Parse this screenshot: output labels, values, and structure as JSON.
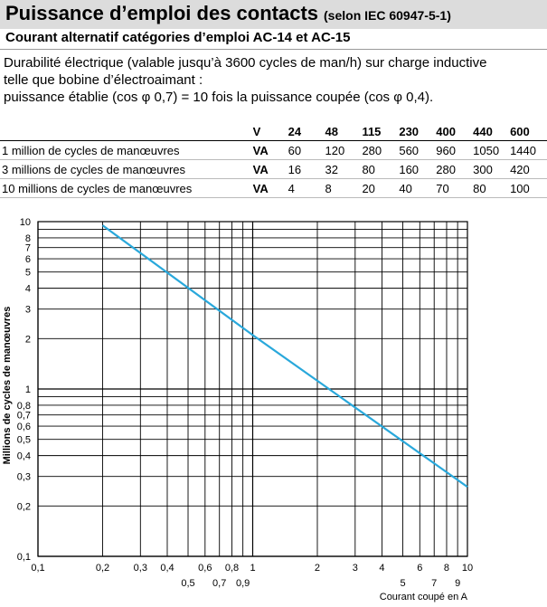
{
  "header": {
    "title": "Puissance d’emploi des contacts",
    "title_note": "(selon IEC 60947-5-1)",
    "subtitle": "Courant alternatif catégories d’emploi AC-14 et AC-15"
  },
  "intro": {
    "line1": "Durabilité électrique (valable jusqu’à 3600 cycles de man/h) sur charge inductive",
    "line2": "telle que bobine d’électroaimant :",
    "line3": "puissance établie (cos φ 0,7) = 10 fois la puissance coupée (cos φ 0,4)."
  },
  "table": {
    "unit_header": "V",
    "voltages": [
      "24",
      "48",
      "115",
      "230",
      "400",
      "440",
      "600"
    ],
    "rows": [
      {
        "label": "1 million de cycles de manœuvres",
        "unit": "VA",
        "values": [
          "60",
          "120",
          "280",
          "560",
          "960",
          "1050",
          "1440"
        ]
      },
      {
        "label": "3 millions de cycles de manœuvres",
        "unit": "VA",
        "values": [
          "16",
          "32",
          "80",
          "160",
          "280",
          "300",
          "420"
        ]
      },
      {
        "label": "10 millions de cycles de manœuvres",
        "unit": "VA",
        "values": [
          "4",
          "8",
          "20",
          "40",
          "70",
          "80",
          "100"
        ]
      }
    ]
  },
  "chart_data": {
    "type": "line",
    "xlabel": "Courant coupé en A",
    "ylabel": "Millions de cycles de manœuvres",
    "xscale": "log",
    "yscale": "log",
    "xlim": [
      0.1,
      10
    ],
    "ylim": [
      0.1,
      10
    ],
    "grid": true,
    "x_ticks_top": [
      "0,1",
      "0,2",
      "0,3",
      "0,4",
      "0,6",
      "0,8",
      "1",
      "2",
      "3",
      "4",
      "6",
      "8",
      "10"
    ],
    "x_ticks_bottom": [
      "0,5",
      "0,7",
      "0,9",
      "5",
      "7",
      "9"
    ],
    "y_ticks": [
      "10",
      "8",
      "7",
      "6",
      "5",
      "4",
      "3",
      "2",
      "1",
      "0,8",
      "0,7",
      "0,6",
      "0,5",
      "0,4",
      "0,3",
      "0,2",
      "0,1"
    ],
    "series": [
      {
        "x": [
          0.2,
          1,
          10
        ],
        "y": [
          9.5,
          2.1,
          0.26
        ]
      }
    ],
    "line_color": "#29a8db"
  }
}
